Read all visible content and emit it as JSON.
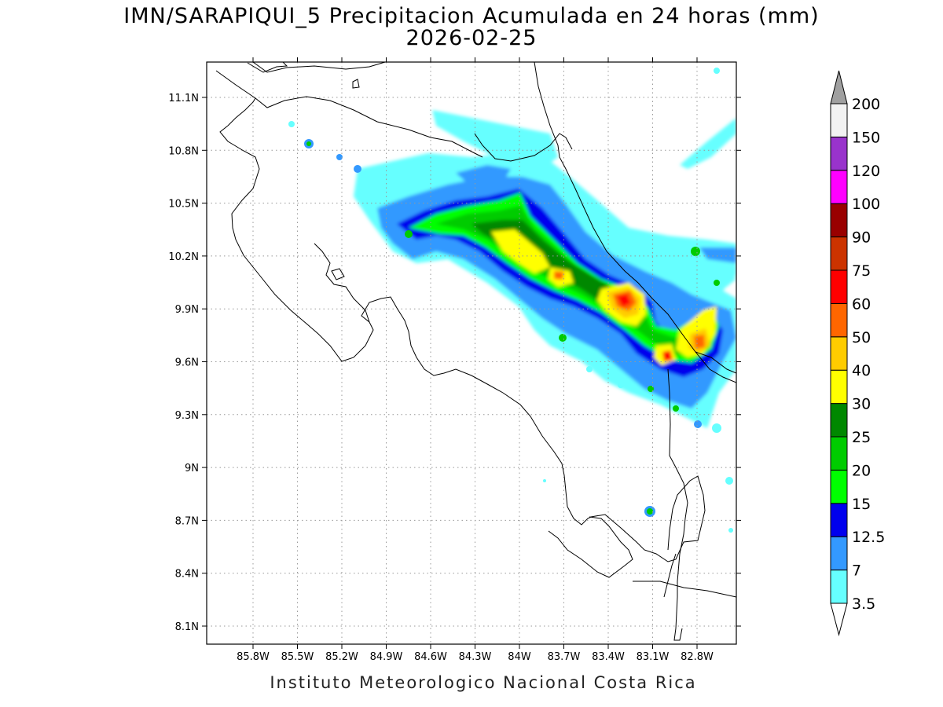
{
  "title": {
    "line1": "IMN/SARAPIQUI_5 Precipitacion Acumulada en 24 horas (mm)",
    "line2": "2026-02-25"
  },
  "footer": "Instituto Meteorologico Nacional Costa Rica",
  "map": {
    "lon_range": [
      -86.1,
      -82.5
    ],
    "lat_range": [
      8.0,
      11.3
    ],
    "lon_ticks": [
      "85.8W",
      "85.5W",
      "85.2W",
      "84.9W",
      "84.6W",
      "84.3W",
      "84W",
      "83.7W",
      "83.4W",
      "83.1W",
      "82.8W"
    ],
    "lat_ticks": [
      "11.1N",
      "10.8N",
      "10.5N",
      "10.2N",
      "9.9N",
      "9.6N",
      "9.3N",
      "9N",
      "8.7N",
      "8.4N",
      "8.1N"
    ],
    "grid": "dotted",
    "field": "24-hour accumulated precipitation (mm)"
  },
  "colorbar": {
    "levels": [
      "3.5",
      "7",
      "12.5",
      "15",
      "20",
      "25",
      "30",
      "40",
      "50",
      "60",
      "75",
      "90",
      "100",
      "120",
      "150",
      "200"
    ],
    "colors": [
      "#66ffff",
      "#3399ff",
      "#0000ee",
      "#00ff00",
      "#00cc00",
      "#008800",
      "#ffff00",
      "#ffcc00",
      "#ff6600",
      "#ff0000",
      "#cc3300",
      "#990000",
      "#ff00ff",
      "#9933cc",
      "#f2f2f2",
      "#a0a0a0"
    ],
    "under_color": "#ffffff"
  }
}
